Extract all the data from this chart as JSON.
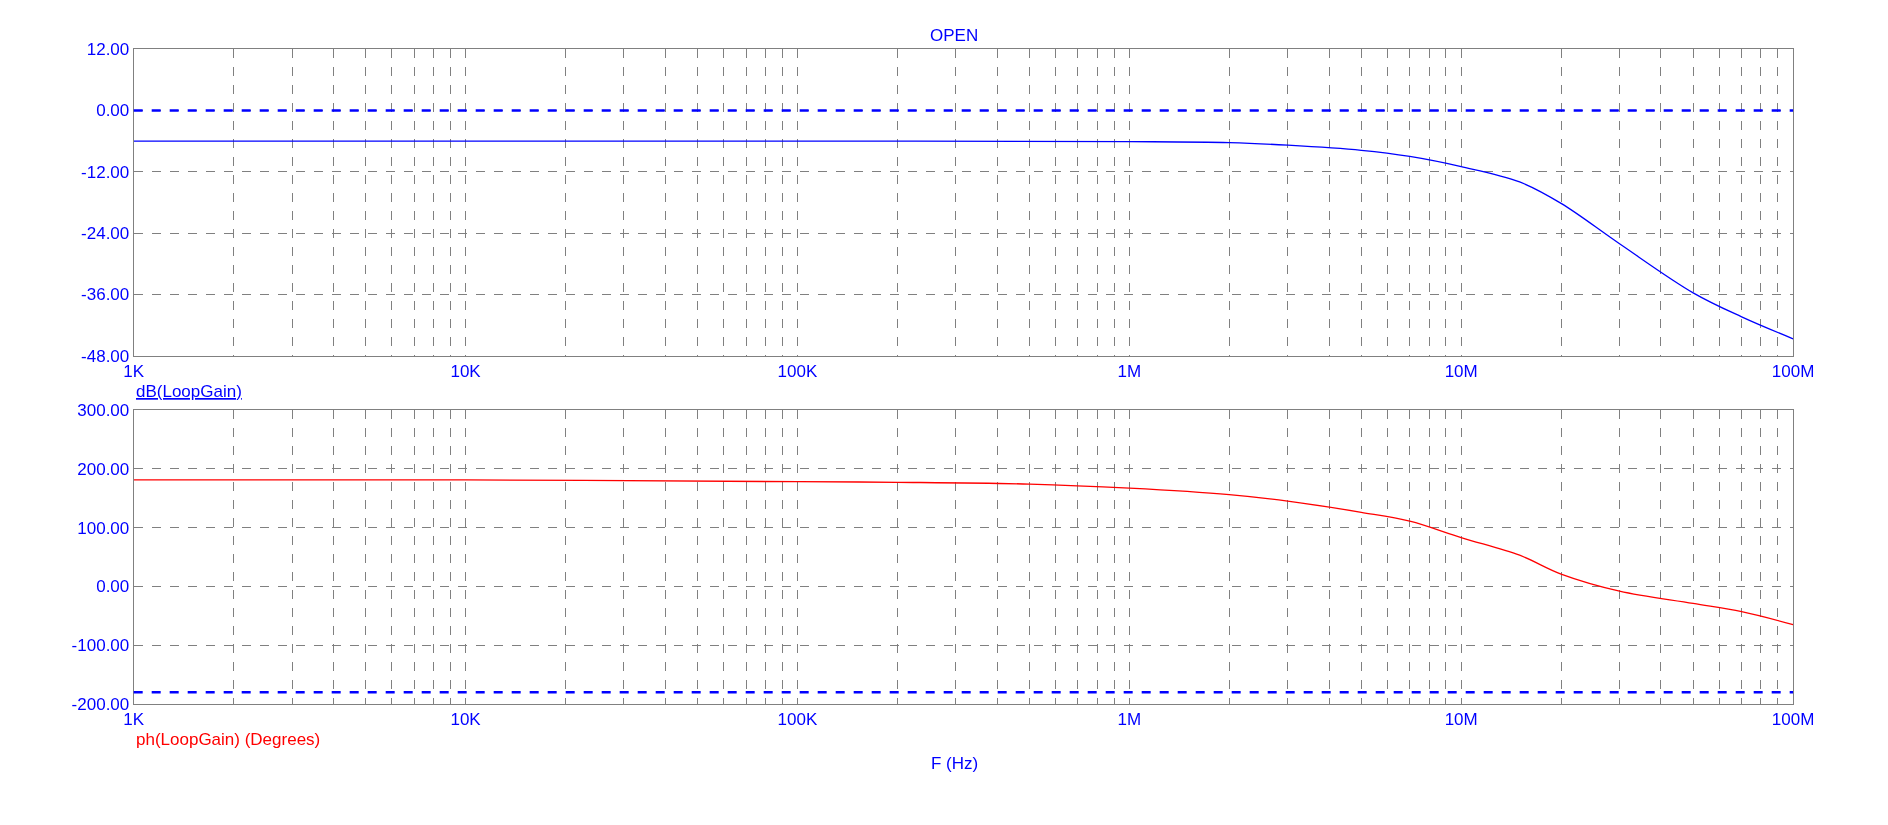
{
  "chart_data": [
    {
      "type": "line",
      "title": "OPEN",
      "log": "x",
      "grid": true,
      "marker": "none",
      "line_style": "solid",
      "xlim": [
        1000,
        100000000
      ],
      "xticks": [
        {
          "value": 1000,
          "label": "1K"
        },
        {
          "value": 10000,
          "label": "10K"
        },
        {
          "value": 100000,
          "label": "100K"
        },
        {
          "value": 1000000,
          "label": "1M"
        },
        {
          "value": 10000000,
          "label": "10M"
        },
        {
          "value": 100000000,
          "label": "100M"
        }
      ],
      "ylim": [
        -48,
        12
      ],
      "yticks": [
        {
          "value": -48,
          "label": "-48.00"
        },
        {
          "value": -36,
          "label": "-36.00"
        },
        {
          "value": -24,
          "label": "-24.00"
        },
        {
          "value": -12,
          "label": "-12.00"
        },
        {
          "value": 0,
          "label": "0.00"
        },
        {
          "value": 12,
          "label": "12.00"
        }
      ],
      "ref_lines": [
        {
          "axis": "y",
          "value": 0,
          "color": "#0000ff",
          "line_style": "dashed"
        }
      ],
      "series": [
        {
          "name": "dB(LoopGain)",
          "color": "#0000ff",
          "x": [
            1000,
            10000,
            100000,
            1000000,
            2000000,
            3000000,
            5000000,
            7000000,
            10000000,
            15000000,
            20000000,
            30000000,
            50000000,
            70000000,
            100000000
          ],
          "values": [
            -6.0,
            -6.0,
            -6.0,
            -6.1,
            -6.3,
            -6.8,
            -7.8,
            -9.0,
            -11.0,
            -14.0,
            -18.2,
            -26.1,
            -35.7,
            -40.4,
            -44.7
          ]
        }
      ]
    },
    {
      "type": "line",
      "xlabel": "F (Hz)",
      "log": "x",
      "grid": true,
      "marker": "none",
      "line_style": "solid",
      "xlim": [
        1000,
        100000000
      ],
      "xticks": [
        {
          "value": 1000,
          "label": "1K"
        },
        {
          "value": 10000,
          "label": "10K"
        },
        {
          "value": 100000,
          "label": "100K"
        },
        {
          "value": 1000000,
          "label": "1M"
        },
        {
          "value": 10000000,
          "label": "10M"
        },
        {
          "value": 100000000,
          "label": "100M"
        }
      ],
      "ylim": [
        -200,
        300
      ],
      "yticks": [
        {
          "value": -200,
          "label": "-200.00"
        },
        {
          "value": -100,
          "label": "-100.00"
        },
        {
          "value": 0,
          "label": "0.00"
        },
        {
          "value": 100,
          "label": "100.00"
        },
        {
          "value": 200,
          "label": "200.00"
        },
        {
          "value": 300,
          "label": "300.00"
        }
      ],
      "ref_lines": [
        {
          "axis": "y",
          "value": -180,
          "color": "#0000ff",
          "line_style": "dashed"
        }
      ],
      "series": [
        {
          "name": "ph(LoopGain) (Degrees)",
          "color": "#ff0000",
          "x": [
            1000,
            10000,
            100000,
            200000,
            500000,
            1000000,
            2000000,
            3000000,
            5000000,
            7000000,
            10000000,
            15000000,
            20000000,
            30000000,
            50000000,
            70000000,
            100000000
          ],
          "values": [
            181,
            181,
            178,
            177,
            174,
            167,
            156,
            145,
            126,
            111,
            83,
            53,
            21,
            -8,
            -29,
            -43,
            -65
          ]
        }
      ]
    }
  ]
}
